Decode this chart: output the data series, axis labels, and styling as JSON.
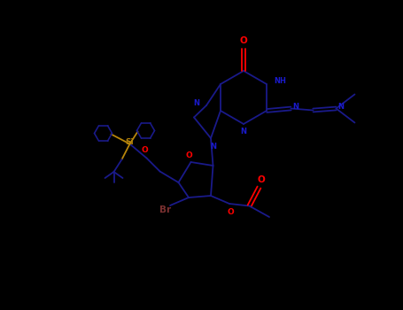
{
  "background_color": "#000000",
  "N_color": "#1a1acd",
  "O_color": "#ff0000",
  "Si_color": "#b8860b",
  "Br_color": "#7a3030",
  "bond_color": "#1a1a8a",
  "figsize": [
    4.55,
    3.5
  ],
  "dpi": 100,
  "xlim": [
    0,
    9.1
  ],
  "ylim": [
    0,
    7.0
  ]
}
